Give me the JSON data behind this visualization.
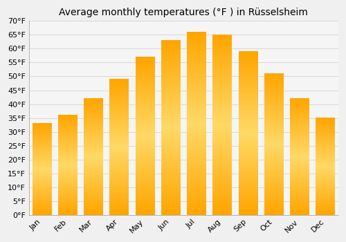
{
  "title": "Average monthly temperatures (°F ) in Rüsselsheim",
  "months": [
    "Jan",
    "Feb",
    "Mar",
    "Apr",
    "May",
    "Jun",
    "Jul",
    "Aug",
    "Sep",
    "Oct",
    "Nov",
    "Dec"
  ],
  "values": [
    33,
    36,
    42,
    49,
    57,
    63,
    66,
    65,
    59,
    51,
    42,
    35
  ],
  "bar_color_center": "#FFD966",
  "bar_color_edge": "#FFA500",
  "background_color": "#F0F0F0",
  "plot_bg_color": "#F5F5F5",
  "ylim": [
    0,
    70
  ],
  "ytick_step": 5,
  "title_fontsize": 10,
  "tick_fontsize": 8,
  "grid_color": "#CCCCCC"
}
